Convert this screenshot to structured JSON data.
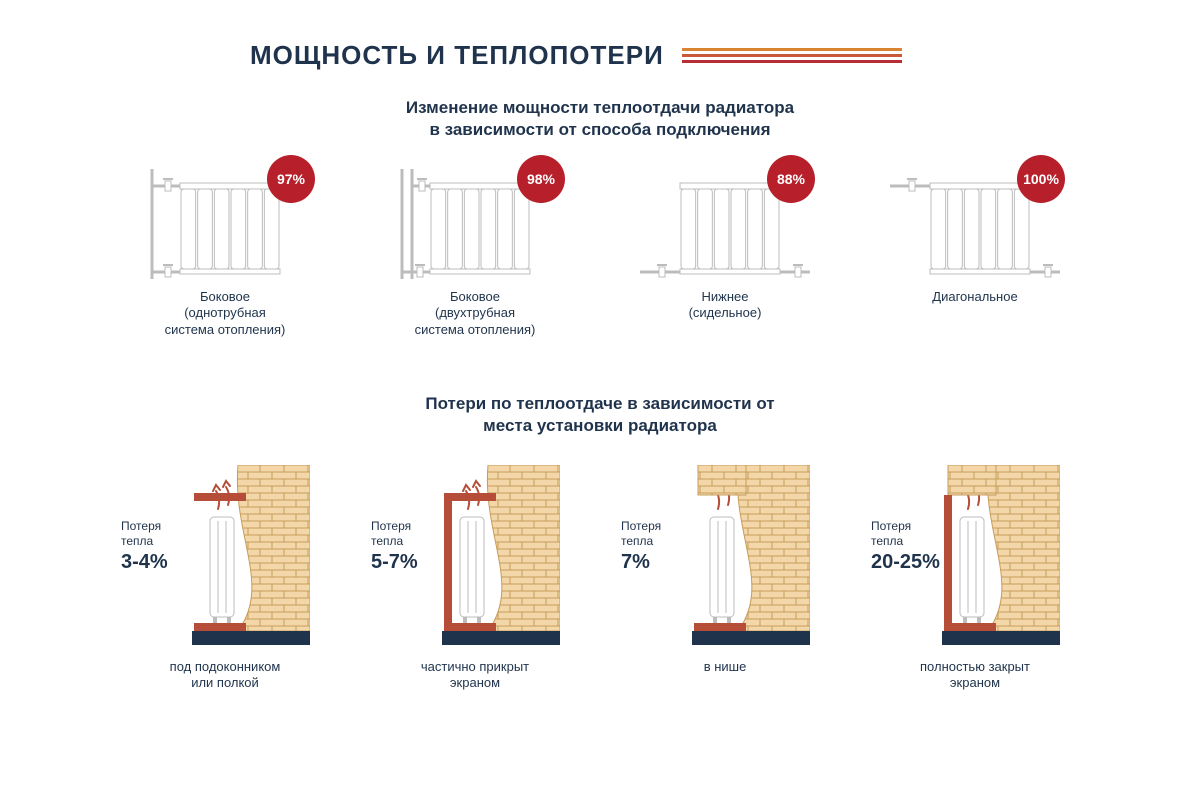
{
  "colors": {
    "text": "#1f334c",
    "badge": "#b7202b",
    "stripe1": "#d98433",
    "stripe2": "#c85a3a",
    "stripe3": "#b82e38",
    "brick_fill": "#f3d7a9",
    "brick_stroke": "#c69c5a",
    "shelf": "#b54d39",
    "radiator_stroke": "#bcbcbc",
    "radiator_fill": "#ffffff",
    "floor_dark": "#1f334c"
  },
  "title": "МОЩНОСТЬ И ТЕПЛОПОТЕРИ",
  "section1": {
    "subtitle_l1": "Изменение мощности теплоотдачи радиатора",
    "subtitle_l2": "в зависимости от способа подключения",
    "items": [
      {
        "percent": "97%",
        "caption_l1": "Боковое",
        "caption_l2": "(однотрубная",
        "caption_l3": "система отопления)",
        "pipes": "side_single"
      },
      {
        "percent": "98%",
        "caption_l1": "Боковое",
        "caption_l2": "(двухтрубная",
        "caption_l3": "система отопления)",
        "pipes": "side_double"
      },
      {
        "percent": "88%",
        "caption_l1": "Нижнее",
        "caption_l2": "(сидельное)",
        "caption_l3": "",
        "pipes": "bottom"
      },
      {
        "percent": "100%",
        "caption_l1": "Диагональное",
        "caption_l2": "",
        "caption_l3": "",
        "pipes": "diagonal"
      }
    ]
  },
  "section2": {
    "subtitle_l1": "Потери по теплоотдаче в зависимости от",
    "subtitle_l2": "места установки радиатора",
    "loss_label": "Потеря",
    "loss_label2": "тепла",
    "items": [
      {
        "percent": "3-4%",
        "caption_l1": "под подоконником",
        "caption_l2": "или полкой",
        "config": "sill"
      },
      {
        "percent": "5-7%",
        "caption_l1": "частично прикрыт",
        "caption_l2": "экраном",
        "config": "partial"
      },
      {
        "percent": "7%",
        "caption_l1": "в нише",
        "caption_l2": "",
        "config": "niche"
      },
      {
        "percent": "20-25%",
        "caption_l1": "полностью закрыт",
        "caption_l2": "экраном",
        "config": "full"
      }
    ]
  }
}
